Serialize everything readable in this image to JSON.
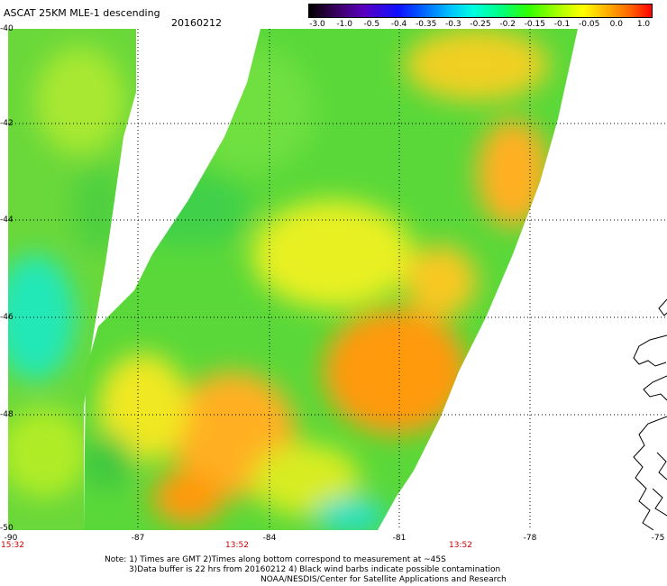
{
  "header": {
    "title": "ASCAT 25KM MLE-1 descending",
    "date": "20160212"
  },
  "colorbar": {
    "labels": [
      "-3.0",
      "-1.0",
      "-0.5",
      "-0.4",
      "-0.35",
      "-0.3",
      "-0.25",
      "-0.2",
      "-0.15",
      "-0.1",
      "-0.05",
      "0.0",
      "1.0"
    ]
  },
  "axes": {
    "y_ticks": [
      "-40",
      "-42",
      "-44",
      "-46",
      "-48",
      "-50"
    ],
    "x_ticks": [
      "-90",
      "-87",
      "-84",
      "-81",
      "-78",
      "-75"
    ],
    "lat_range": [
      -50,
      -40
    ],
    "lon_range": [
      -90,
      -75
    ],
    "grid": true
  },
  "pass_times": [
    "15:32",
    "13:52",
    "13:52"
  ],
  "notes": {
    "line1": "Note: 1) Times are GMT 2)Times along bottom correspond to measurement at ~45S",
    "line2": "3)Data buffer is 22 hrs from 20160212 4) Black wind barbs indicate possible contamination",
    "line3": "NOAA/NESDIS/Center for Satellite Applications and Research"
  },
  "colors": {
    "swath_green": "#4cd13a",
    "swath_yellow": "#e8f020",
    "swath_orange": "#ff9a10",
    "swath_cyan": "#18e0c8",
    "time_red": "#d00000"
  }
}
